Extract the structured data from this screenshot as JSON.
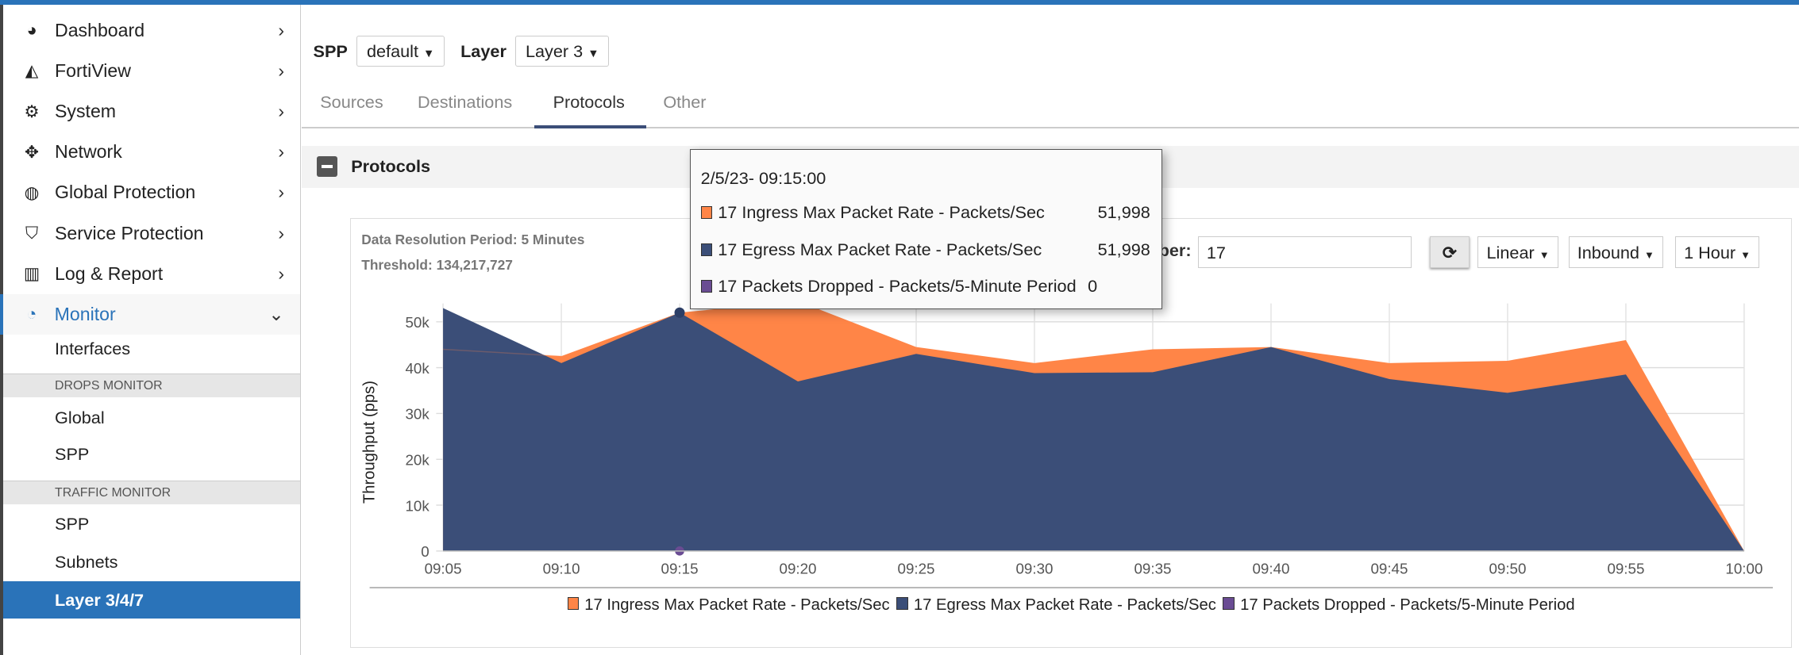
{
  "sidebar": {
    "items": [
      {
        "label": "Dashboard",
        "icon": "dashboard-icon",
        "glyph": "◕"
      },
      {
        "label": "FortiView",
        "icon": "area-chart-icon",
        "glyph": "◭"
      },
      {
        "label": "System",
        "icon": "gear-icon",
        "glyph": "⚙"
      },
      {
        "label": "Network",
        "icon": "arrows-move-icon",
        "glyph": "✥"
      },
      {
        "label": "Global Protection",
        "icon": "globe-icon",
        "glyph": "◍"
      },
      {
        "label": "Service Protection",
        "icon": "shield-icon",
        "glyph": "⛉"
      },
      {
        "label": "Log & Report",
        "icon": "bar-chart-icon",
        "glyph": "▥"
      },
      {
        "label": "Monitor",
        "icon": "pie-chart-icon",
        "glyph": "◔"
      }
    ],
    "monitor_items": {
      "interfaces": "Interfaces",
      "drops_header": "DROPS MONITOR",
      "global": "Global",
      "spp1": "SPP",
      "traffic_header": "TRAFFIC MONITOR",
      "spp2": "SPP",
      "subnets": "Subnets",
      "layer": "Layer 3/4/7"
    }
  },
  "filters": {
    "spp_label": "SPP",
    "spp_value": "default",
    "layer_label": "Layer",
    "layer_value": "Layer 3"
  },
  "tabs": [
    {
      "label": "Sources"
    },
    {
      "label": "Destinations"
    },
    {
      "label": "Protocols",
      "active": true
    },
    {
      "label": "Other"
    }
  ],
  "section": {
    "title": "Protocols"
  },
  "panel": {
    "resolution": "Data Resolution Period: 5 Minutes",
    "threshold": "Threshold: 134,217,727",
    "protocol_label_visible": "ber:",
    "protocol_value": "17",
    "scale": "Linear",
    "direction": "Inbound",
    "range": "1 Hour"
  },
  "tooltip": {
    "time": "2/5/23- 09:15:00",
    "rows": [
      {
        "label": "17 Ingress Max Packet Rate - Packets/Sec",
        "value": "51,998"
      },
      {
        "label": "17 Egress Max Packet Rate - Packets/Sec",
        "value": "51,998"
      },
      {
        "label": "17 Packets Dropped - Packets/5-Minute Period",
        "value": "0"
      }
    ]
  },
  "chart_data": {
    "type": "area",
    "ylabel": "Throughput (pps)",
    "ylim": [
      0,
      55000
    ],
    "yticks": [
      "0",
      "10k",
      "20k",
      "30k",
      "40k",
      "50k"
    ],
    "categories": [
      "09:05",
      "09:10",
      "09:15",
      "09:20",
      "09:25",
      "09:30",
      "09:35",
      "09:40",
      "09:45",
      "09:50",
      "09:55",
      "10:00"
    ],
    "grid": true,
    "legend_position": "bottom",
    "series": [
      {
        "name": "17 Ingress Max Packet Rate - Packets/Sec",
        "color": "#ff8547",
        "values": [
          44000,
          42500,
          51998,
          54500,
          44500,
          41000,
          44000,
          44500,
          41000,
          41500,
          46000,
          0
        ]
      },
      {
        "name": "17 Egress Max Packet Rate - Packets/Sec",
        "color": "#3b4e78",
        "values": [
          53000,
          41000,
          51998,
          37000,
          43000,
          38800,
          39000,
          44500,
          37500,
          34500,
          38500,
          0
        ]
      },
      {
        "name": "17 Packets Dropped - Packets/5-Minute Period",
        "color": "#6a4c93",
        "values": [
          0,
          0,
          0,
          0,
          0,
          0,
          0,
          0,
          0,
          0,
          0,
          0
        ]
      }
    ]
  }
}
